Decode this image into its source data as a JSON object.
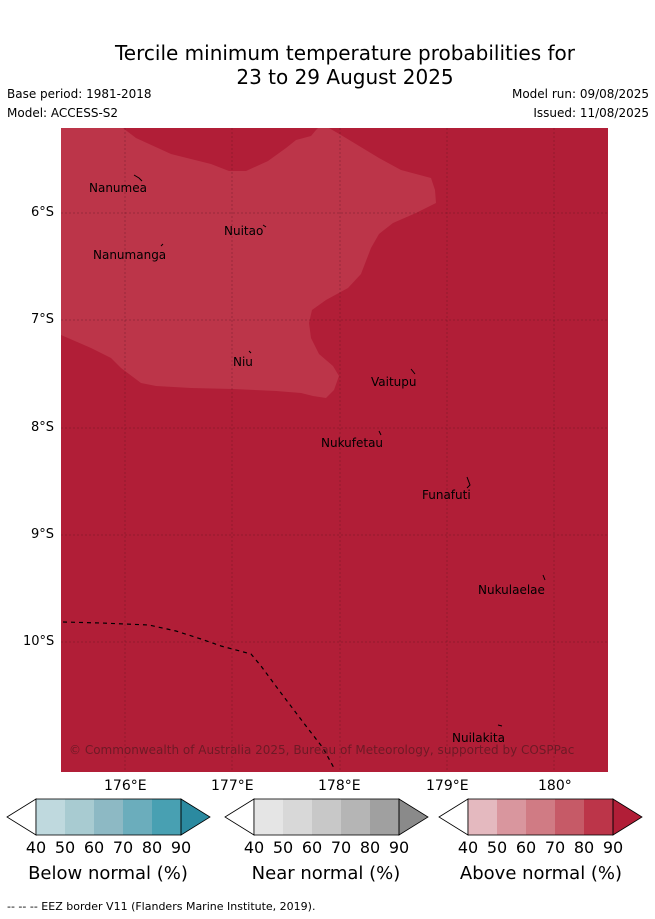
{
  "title": {
    "line1": "Tercile minimum temperature probabilities for",
    "line2": "23 to 29 August 2025"
  },
  "meta": {
    "base_period": "Base period: 1981-2018",
    "model": "Model: ACCESS-S2",
    "model_run": "Model run: 09/08/2025",
    "issued": "Issued: 11/08/2025"
  },
  "axes": {
    "lat_labels": [
      "6°S",
      "7°S",
      "8°S",
      "9°S",
      "10°S"
    ],
    "lon_labels": [
      "176°E",
      "177°E",
      "178°E",
      "179°E",
      "180°"
    ]
  },
  "places": [
    "Nanumea",
    "Nuitao",
    "Nanumanga",
    "Niu",
    "Vaitupu",
    "Nukufetau",
    "Funafuti",
    "Nukulaelae",
    "Nuilakita"
  ],
  "credit": "© Commonwealth of Australia 2025, Bureau of Meteorology, supported by COSPPac",
  "colorbars": [
    {
      "title": "Below normal (%)",
      "ticks": [
        "40",
        "50",
        "60",
        "70",
        "80",
        "90"
      ],
      "colors": [
        "#ffffff",
        "#bfd9de",
        "#a8cbd1",
        "#8db9c4",
        "#6badbc",
        "#48a0b2",
        "#2b8aa0"
      ]
    },
    {
      "title": "Near normal (%)",
      "ticks": [
        "40",
        "50",
        "60",
        "70",
        "80",
        "90"
      ],
      "colors": [
        "#ffffff",
        "#e5e5e5",
        "#d8d8d8",
        "#c8c8c8",
        "#b5b5b5",
        "#a0a0a0",
        "#8a8a8a"
      ]
    },
    {
      "title": "Above normal (%)",
      "ticks": [
        "40",
        "50",
        "60",
        "70",
        "80",
        "90"
      ],
      "colors": [
        "#ffffff",
        "#e4b9bf",
        "#d9969e",
        "#d07b84",
        "#c65a67",
        "#bc3549",
        "#b11e37"
      ]
    }
  ],
  "map_colors": {
    "above_80_90": "#b11e37",
    "above_70_80": "#bc3549"
  },
  "footnote": "--  --  -- EEZ border V11 (Flanders Marine Institute, 2019)."
}
